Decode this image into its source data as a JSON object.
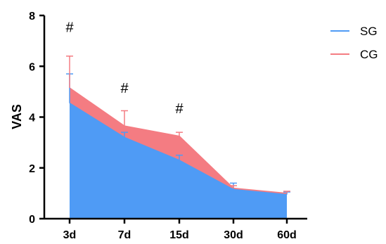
{
  "chart_data": {
    "type": "area",
    "categories": [
      "3d",
      "7d",
      "15d",
      "30d",
      "60d"
    ],
    "ylabel": "VAS",
    "xlabel": "",
    "ylim": [
      0,
      8
    ],
    "yticks": [
      0,
      2,
      4,
      6,
      8
    ],
    "grid": false,
    "legend_position": "top-right",
    "series": [
      {
        "name": "SG",
        "color": "#4f9bf5",
        "values": [
          4.55,
          3.2,
          2.3,
          1.15,
          0.95
        ],
        "error": [
          1.15,
          0.2,
          0.2,
          0.25,
          0.1
        ]
      },
      {
        "name": "CG",
        "color": "#f47c82",
        "values": [
          5.15,
          3.65,
          3.25,
          1.2,
          1.0
        ],
        "error": [
          1.25,
          0.6,
          0.15,
          0.1,
          0.08
        ]
      }
    ],
    "annotations": [
      {
        "category": "3d",
        "text": "#",
        "y": 7.35
      },
      {
        "category": "7d",
        "text": "#",
        "y": 4.95
      },
      {
        "category": "15d",
        "text": "#",
        "y": 4.15
      }
    ]
  }
}
